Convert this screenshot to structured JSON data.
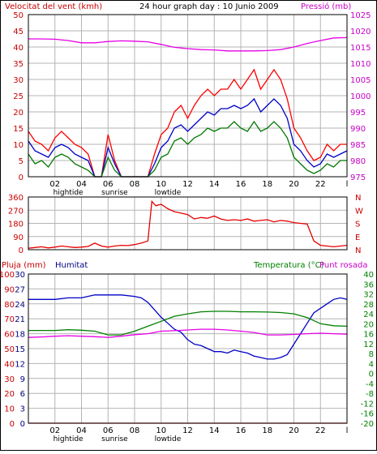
{
  "header": {
    "left": "Velocitat del vent (kmh)",
    "center": "24 hour graph day : 10 Junio 2009",
    "right": "Pressió (mb)"
  },
  "xaxis": {
    "ticks": [
      "02",
      "04",
      "06",
      "08",
      "10",
      "12",
      "14",
      "16",
      "18",
      "20",
      "22",
      "l"
    ],
    "annotations": [
      {
        "label": "hightide",
        "hour": 3.0
      },
      {
        "label": "sunrise",
        "hour": 6.5
      },
      {
        "label": "lowtide",
        "hour": 10.5
      }
    ]
  },
  "colors": {
    "frame": "#000000",
    "grid": "#b4b4b4",
    "wind_gust": "#ff0000",
    "wind_avg": "#0000c8",
    "wind_low": "#007800",
    "pressure": "#e600e6",
    "direction": "#e60000",
    "humidity": "#0000c8",
    "temperature": "#008000",
    "dewpoint": "#e600e6",
    "rain": "#e60000",
    "left_label": "#c80000",
    "right_label": "#c800c8",
    "green_label": "#008000",
    "blue_label": "#000080"
  },
  "chart_data": [
    {
      "type": "line",
      "panel": "wind_pressure",
      "title": "24 hour graph day : 10 Junio 2009",
      "ylabel": "Velocitat del vent (kmh)",
      "ylabel_right": "Pressió (mb)",
      "ylim": [
        0,
        50
      ],
      "ylim_right": [
        975,
        1025
      ],
      "yticks": [
        "0",
        "5",
        "10",
        "15",
        "20",
        "25",
        "30",
        "35",
        "40",
        "45",
        "50"
      ],
      "yticks_right": [
        "975",
        "980",
        "985",
        "990",
        "995",
        "1000",
        "1005",
        "1010",
        "1015",
        "1020",
        "1025"
      ],
      "grid": true,
      "series": [
        {
          "key": "gust",
          "color_key": "wind_gust",
          "axis": "left",
          "x": [
            0,
            0.5,
            1,
            1.5,
            2,
            2.5,
            3,
            3.5,
            4,
            4.5,
            5,
            5.5,
            6,
            6.5,
            7,
            7.5,
            8,
            8.5,
            9,
            9.5,
            10,
            10.5,
            11,
            11.5,
            12,
            12.5,
            13,
            13.5,
            14,
            14.5,
            15,
            15.5,
            16,
            16.5,
            17,
            17.5,
            18,
            18.5,
            19,
            19.5,
            20,
            20.5,
            21,
            21.5,
            22,
            22.5,
            23,
            23.5,
            24
          ],
          "y": [
            14,
            11,
            10,
            8,
            12,
            14,
            12,
            10,
            9,
            7,
            0,
            0,
            13,
            5,
            0,
            0,
            0,
            0,
            0,
            7,
            13,
            15,
            20,
            22,
            18,
            22,
            25,
            27,
            25,
            27,
            27,
            30,
            27,
            30,
            33,
            27,
            30,
            33,
            30,
            24,
            15,
            12,
            8,
            5,
            6,
            10,
            8,
            10,
            10
          ]
        },
        {
          "key": "average",
          "color_key": "wind_avg",
          "axis": "left",
          "x": [
            0,
            0.5,
            1,
            1.5,
            2,
            2.5,
            3,
            3.5,
            4,
            4.5,
            5,
            5.5,
            6,
            6.5,
            7,
            7.5,
            8,
            8.5,
            9,
            9.5,
            10,
            10.5,
            11,
            11.5,
            12,
            12.5,
            13,
            13.5,
            14,
            14.5,
            15,
            15.5,
            16,
            16.5,
            17,
            17.5,
            18,
            18.5,
            19,
            19.5,
            20,
            20.5,
            21,
            21.5,
            22,
            22.5,
            23,
            23.5,
            24
          ],
          "y": [
            11,
            8,
            7,
            6,
            9,
            10,
            9,
            7,
            6,
            5,
            0,
            0,
            9,
            4,
            0,
            0,
            0,
            0,
            0,
            4,
            9,
            11,
            15,
            16,
            14,
            16,
            18,
            20,
            19,
            21,
            21,
            22,
            21,
            22,
            24,
            20,
            22,
            24,
            22,
            18,
            10,
            8,
            5,
            3,
            4,
            7,
            6,
            7,
            8
          ]
        },
        {
          "key": "low",
          "color_key": "wind_low",
          "axis": "left",
          "x": [
            0,
            0.5,
            1,
            1.5,
            2,
            2.5,
            3,
            3.5,
            4,
            4.5,
            5,
            5.5,
            6,
            6.5,
            7,
            7.5,
            8,
            8.5,
            9,
            9.5,
            10,
            10.5,
            11,
            11.5,
            12,
            12.5,
            13,
            13.5,
            14,
            14.5,
            15,
            15.5,
            16,
            16.5,
            17,
            17.5,
            18,
            18.5,
            19,
            19.5,
            20,
            20.5,
            21,
            21.5,
            22,
            22.5,
            23,
            23.5,
            24
          ],
          "y": [
            7,
            4,
            5,
            3,
            6,
            7,
            6,
            4,
            3,
            2,
            0,
            0,
            6,
            2,
            0,
            0,
            0,
            0,
            0,
            2,
            6,
            7,
            11,
            12,
            10,
            12,
            13,
            15,
            14,
            15,
            15,
            17,
            15,
            14,
            17,
            14,
            15,
            17,
            15,
            12,
            6,
            4,
            2,
            1,
            2,
            4,
            3,
            5,
            5
          ]
        },
        {
          "key": "pressure",
          "color_key": "pressure",
          "axis": "right",
          "x": [
            0,
            1,
            2,
            3,
            4,
            5,
            6,
            7,
            8,
            9,
            10,
            11,
            12,
            13,
            14,
            15,
            16,
            17,
            18,
            19,
            20,
            21,
            22,
            23,
            24
          ],
          "y": [
            1017.5,
            1017.5,
            1017.4,
            1017.0,
            1016.3,
            1016.3,
            1016.7,
            1016.9,
            1016.8,
            1016.6,
            1015.8,
            1014.9,
            1014.5,
            1014.2,
            1014.1,
            1013.8,
            1013.8,
            1013.8,
            1013.9,
            1014.2,
            1015.0,
            1016.1,
            1017.0,
            1017.8,
            1017.9
          ]
        }
      ]
    },
    {
      "type": "scatter",
      "panel": "wind_direction",
      "ylim": [
        0,
        360
      ],
      "yticks": [
        "0",
        "90",
        "180",
        "270",
        "360"
      ],
      "yticks_right": [
        "N",
        "E",
        "S",
        "W",
        "N"
      ],
      "grid": true,
      "series": [
        {
          "key": "direction",
          "color_key": "direction",
          "x": [
            0,
            0.5,
            1,
            1.5,
            2,
            2.5,
            3,
            3.5,
            4,
            4.5,
            5,
            5.5,
            6,
            6.5,
            7,
            7.5,
            8,
            8.5,
            9,
            9.3,
            9.6,
            10,
            10.5,
            11,
            11.5,
            12,
            12.5,
            13,
            13.5,
            14,
            14.5,
            15,
            15.5,
            16,
            16.5,
            17,
            17.5,
            18,
            18.5,
            19,
            19.5,
            20,
            20.5,
            21,
            21.5,
            22,
            22.5,
            23,
            23.5,
            24
          ],
          "y": [
            10,
            15,
            20,
            12,
            18,
            25,
            20,
            15,
            18,
            22,
            45,
            25,
            18,
            25,
            30,
            28,
            35,
            45,
            60,
            330,
            300,
            310,
            280,
            260,
            250,
            240,
            210,
            220,
            215,
            230,
            210,
            200,
            205,
            200,
            210,
            195,
            200,
            205,
            190,
            200,
            195,
            185,
            180,
            175,
            60,
            30,
            25,
            20,
            25,
            30
          ]
        }
      ]
    },
    {
      "type": "line",
      "panel": "humidity_temperature",
      "ylabel": "Pluja (mm)",
      "ylabel2": "Humitat",
      "ylabel_right": "Temperatura (°C)",
      "ylabel_right2": "Punt rosada",
      "ylim_humidity": [
        0,
        100
      ],
      "ylim_rain": [
        0,
        30
      ],
      "ylim_temp": [
        -20,
        40
      ],
      "yticks_humidity": [
        "0",
        "10",
        "20",
        "30",
        "40",
        "50",
        "60",
        "70",
        "80",
        "90",
        "100"
      ],
      "yticks_rain": [
        "0",
        "3",
        "6",
        "9",
        "12",
        "15",
        "18",
        "21",
        "24",
        "27",
        "30"
      ],
      "yticks_temp": [
        "-20",
        "-16",
        "-12",
        "-8",
        "-4",
        "0",
        "4",
        "8",
        "12",
        "16",
        "20",
        "24",
        "28",
        "32",
        "36",
        "40"
      ],
      "grid": true,
      "series": [
        {
          "key": "humidity",
          "color_key": "humidity",
          "axis": "humidity",
          "x": [
            0,
            1,
            2,
            3,
            4,
            5,
            6,
            7,
            8,
            8.5,
            9,
            9.5,
            10,
            10.5,
            11,
            11.5,
            12,
            12.5,
            13,
            13.5,
            14,
            14.5,
            15,
            15.5,
            16,
            16.5,
            17,
            17.5,
            18,
            18.5,
            19,
            19.5,
            20,
            20.5,
            21,
            21.5,
            22,
            22.5,
            23,
            23.5,
            24
          ],
          "y": [
            83,
            83,
            83,
            84,
            84,
            86,
            86,
            86,
            85,
            84,
            81,
            76,
            71,
            67,
            63,
            61,
            56,
            53,
            52,
            50,
            48,
            48,
            47,
            49,
            48,
            47,
            45,
            44,
            43,
            43,
            44,
            46,
            53,
            60,
            67,
            74,
            77,
            80,
            83,
            84,
            83
          ]
        },
        {
          "key": "temperature",
          "color_key": "temperature",
          "axis": "temperature",
          "x": [
            0,
            1,
            2,
            3,
            4,
            5,
            6,
            7,
            8,
            9,
            10,
            11,
            12,
            13,
            14,
            15,
            16,
            17,
            18,
            19,
            20,
            21,
            22,
            23,
            24
          ],
          "y": [
            17.3,
            17.3,
            17.3,
            17.6,
            17.4,
            17.0,
            15.5,
            15.5,
            17.0,
            19.0,
            21.0,
            23.0,
            24.0,
            24.8,
            25.0,
            25.0,
            24.8,
            24.8,
            24.7,
            24.5,
            24.0,
            22.5,
            20.0,
            19.2,
            19.0
          ]
        },
        {
          "key": "dewpoint",
          "color_key": "dewpoint",
          "axis": "temperature",
          "x": [
            0,
            1,
            2,
            3,
            4,
            5,
            6,
            7,
            8,
            9,
            10,
            11,
            12,
            13,
            14,
            15,
            16,
            17,
            18,
            19,
            20,
            21,
            22,
            23,
            24
          ],
          "y": [
            14.5,
            14.7,
            15.0,
            15.2,
            15.0,
            14.8,
            14.5,
            15.0,
            15.6,
            16.0,
            17.0,
            17.2,
            17.5,
            17.8,
            17.8,
            17.5,
            17.0,
            16.5,
            15.5,
            15.5,
            15.7,
            16.0,
            16.2,
            16.0,
            15.8
          ]
        },
        {
          "key": "rain",
          "color_key": "rain",
          "axis": "rain",
          "x": [
            0,
            24
          ],
          "y": [
            0,
            0
          ]
        }
      ]
    }
  ],
  "panel3_labels": {
    "rain": "Pluja (mm)",
    "humidity": "Humitat",
    "temperature": "Temperatura (°C)",
    "dewpoint": "Punt rosada"
  }
}
